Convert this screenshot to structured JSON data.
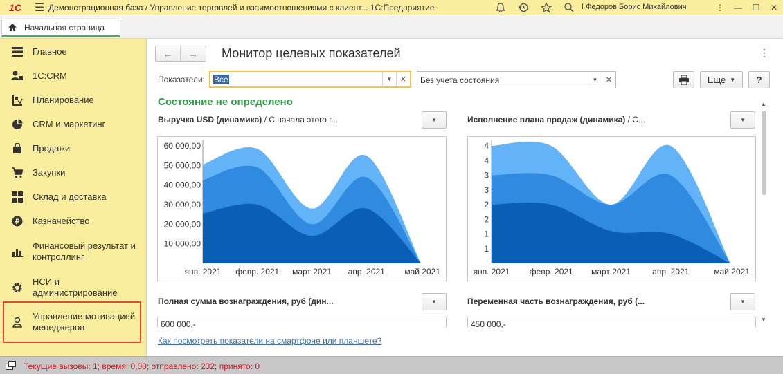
{
  "titlebar": {
    "logo": "1С",
    "title": "Демонстрационная база / Управление торговлей и взаимоотношениями с клиент...  1С:Предприятие",
    "user": "! Федоров Борис Михайлович",
    "icons": [
      "bell-icon",
      "history-icon",
      "star-icon",
      "search-icon",
      "menu-icon"
    ]
  },
  "tab": {
    "label": "Начальная страница",
    "icon": "home-icon"
  },
  "sidebar": {
    "items": [
      {
        "label": "Главное",
        "icon": "list-icon"
      },
      {
        "label": "1С:CRM",
        "icon": "user-icon"
      },
      {
        "label": "Планирование",
        "icon": "plan-icon"
      },
      {
        "label": "CRM и маркетинг",
        "icon": "pie-icon"
      },
      {
        "label": "Продажи",
        "icon": "bag-icon"
      },
      {
        "label": "Закупки",
        "icon": "cart-icon"
      },
      {
        "label": "Склад и доставка",
        "icon": "grid-icon"
      },
      {
        "label": "Казначейство",
        "icon": "coin-icon"
      },
      {
        "label": "Финансовый результат и контроллинг",
        "icon": "bars-icon"
      },
      {
        "label": "НСИ и администрирование",
        "icon": "gear-icon"
      },
      {
        "label": "Управление мотивацией менеджеров",
        "icon": "person-icon"
      }
    ]
  },
  "main": {
    "title": "Монитор целевых показателей",
    "indicators_label": "Показатели:",
    "indicators_value": "Все",
    "state_value": "Без учета состояния",
    "more_label": "Еще",
    "help_label": "?",
    "status_heading": "Состояние не определено",
    "mobile_link": "Как посмотреть показатели на смартфоне или планшете?"
  },
  "panels": [
    {
      "title_bold": "Выручка USD (динамика)",
      "title_rest": " / С начала этого г..."
    },
    {
      "title_bold": "Исполнение плана продаж (динамика)",
      "title_rest": " / С..."
    },
    {
      "title_bold": "Полная сумма вознаграждения, руб (дин...",
      "title_rest": "",
      "first_tick": "600 000,-"
    },
    {
      "title_bold": "Переменная часть вознаграждения, руб (...",
      "title_rest": "",
      "first_tick": "450 000,-"
    }
  ],
  "chart_data": [
    {
      "type": "area",
      "categories": [
        "янв. 2021",
        "февр. 2021",
        "март 2021",
        "апр. 2021",
        "май 2021"
      ],
      "ylim": [
        0,
        60000
      ],
      "yticks": [
        "60 000,00",
        "50 000,00",
        "40 000,00",
        "30 000,00",
        "20 000,00",
        "10 000,00"
      ],
      "ytick_values": [
        60000,
        50000,
        40000,
        30000,
        20000,
        10000
      ],
      "series": [
        {
          "values": [
            25500,
            30000,
            14000,
            28000,
            0
          ],
          "color": "#0a5fb4"
        },
        {
          "values": [
            42500,
            49000,
            20000,
            44000,
            0
          ],
          "color": "#2f8ae0"
        },
        {
          "values": [
            50500,
            58500,
            28000,
            55000,
            0
          ],
          "color": "#63b3f8"
        }
      ]
    },
    {
      "type": "area",
      "categories": [
        "янв. 2021",
        "февр. 2021",
        "март 2021",
        "апр. 2021",
        "май 2021"
      ],
      "ylim": [
        0,
        4
      ],
      "yticks": [
        "4",
        "4",
        "3",
        "3",
        "2",
        "2",
        "1",
        "1"
      ],
      "ytick_values": [
        4,
        3.5,
        3,
        2.5,
        2,
        1.5,
        1,
        0.5
      ],
      "series": [
        {
          "values": [
            2,
            2,
            1.1,
            1,
            0
          ],
          "color": "#0a5fb4"
        },
        {
          "values": [
            3,
            3,
            2,
            3,
            0
          ],
          "color": "#2f8ae0"
        },
        {
          "values": [
            4,
            4,
            2,
            4,
            0
          ],
          "color": "#63b3f8"
        }
      ]
    }
  ],
  "statusbar": {
    "text": "Текущие вызовы: 1; время: 0,00; отправлено: 232; принято: 0"
  }
}
